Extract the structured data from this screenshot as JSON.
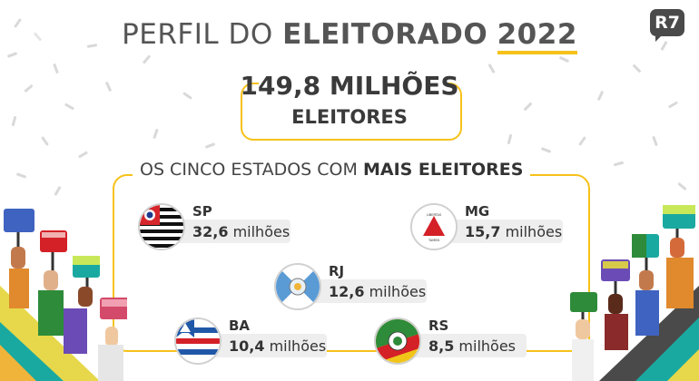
{
  "header": {
    "title_thin": "PERFIL DO",
    "title_bold": "ELEITORADO",
    "title_year": "2022",
    "logo": "R7"
  },
  "total": {
    "number": "149,8 MILHÕES",
    "label": "ELEITORES"
  },
  "section": {
    "title_thin": "OS CINCO ESTADOS COM",
    "title_bold": "MAIS ELEITORES"
  },
  "states": [
    {
      "abbr": "SP",
      "num": "32,6",
      "unit": " milhões",
      "flag": "sp-flag-icon"
    },
    {
      "abbr": "MG",
      "num": "15,7",
      "unit": " milhões",
      "flag": "mg-flag-icon"
    },
    {
      "abbr": "RJ",
      "num": "12,6",
      "unit": " milhões",
      "flag": "rj-flag-icon"
    },
    {
      "abbr": "BA",
      "num": "10,4",
      "unit": " milhões",
      "flag": "ba-flag-icon"
    },
    {
      "abbr": "RS",
      "num": "8,5",
      "unit": " milhões",
      "flag": "rs-flag-icon"
    }
  ],
  "colors": {
    "accent": "#f6c21a",
    "text": "#3a3a3a",
    "teal": "#1aa9a0",
    "purple": "#6b4bb6"
  },
  "mg_flag_text": "LIBERTAS QUAE SERA TAMEN"
}
